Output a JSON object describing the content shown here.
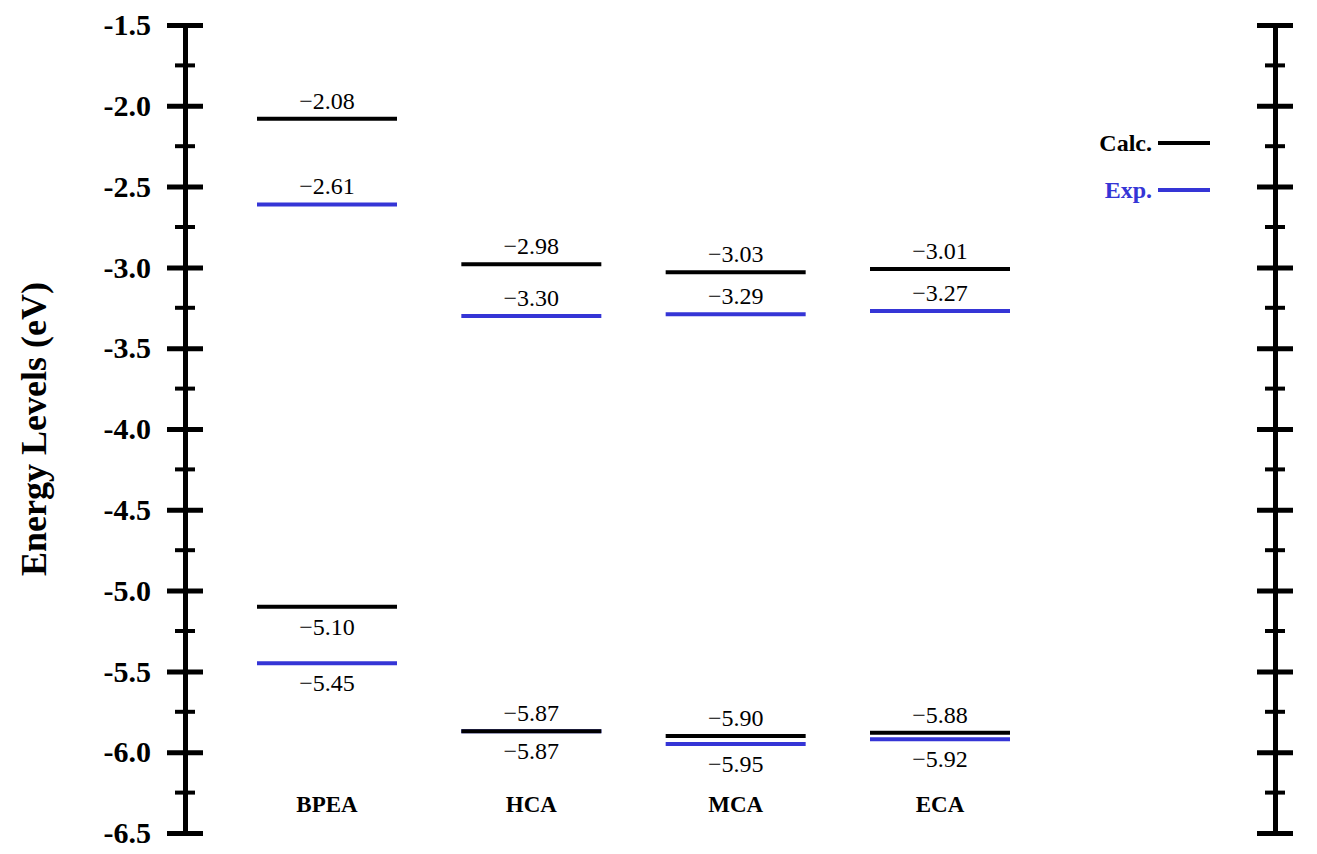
{
  "chart_data": {
    "type": "energy_level",
    "y_label": "Energy Levels (eV)",
    "categories": [
      "BPEA",
      "HCA",
      "MCA",
      "ECA"
    ],
    "ylim": [
      -6.5,
      -1.5
    ],
    "yticks": [
      -6.5,
      {
        "value": -6.0,
        "label": "-6.0"
      },
      -5.5,
      {
        "value": -5.0,
        "label": "-5.0"
      },
      -4.5,
      {
        "value": -4.0,
        "label": "-4.0"
      },
      -3.5,
      {
        "value": -3.0,
        "label": "-3.0"
      },
      -2.5,
      {
        "value": -2.0,
        "label": "-2.0"
      },
      -1.5
    ],
    "minor_yticks": [
      -6.25,
      -5.75,
      -5.25,
      -4.75,
      -4.25,
      -3.75,
      -3.25,
      -2.75,
      -2.25,
      -1.75
    ],
    "legend": "upper right",
    "series": [
      {
        "name": "Calc.",
        "color": "#000000",
        "lumo": [
          -2.08,
          -2.98,
          -3.03,
          -3.01
        ],
        "lumo_labels": [
          "−2.08",
          "−2.98",
          "−3.03",
          "−3.01"
        ],
        "homo": [
          -5.1,
          -5.87,
          -5.9,
          -5.88
        ],
        "homo_labels": [
          "−5.10",
          "−5.87",
          "−5.90",
          "−5.88"
        ]
      },
      {
        "name": "Exp.",
        "color": "#3535d6",
        "lumo": [
          -2.61,
          -3.3,
          -3.29,
          -3.27
        ],
        "lumo_labels": [
          "−2.61",
          "−3.30",
          "−3.29",
          "−3.27"
        ],
        "homo": [
          -5.45,
          -5.87,
          -5.95,
          -5.92
        ],
        "homo_labels": [
          "−5.45",
          "−5.87",
          "−5.95",
          "−5.92"
        ]
      }
    ]
  }
}
